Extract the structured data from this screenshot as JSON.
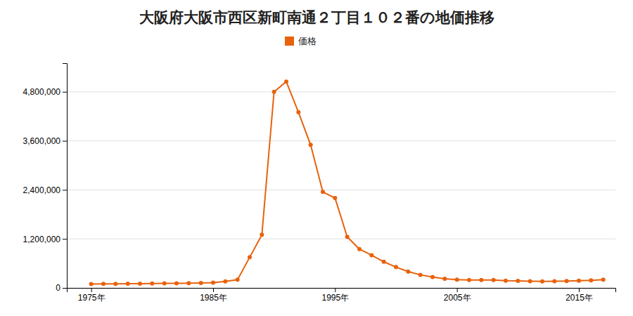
{
  "chart_data": {
    "type": "line",
    "title": "大阪府大阪市西区新町南通２丁目１０２番の地価推移",
    "x": [
      1975,
      1976,
      1977,
      1978,
      1979,
      1980,
      1981,
      1982,
      1983,
      1984,
      1985,
      1986,
      1987,
      1988,
      1989,
      1990,
      1991,
      1992,
      1993,
      1994,
      1995,
      1996,
      1997,
      1998,
      1999,
      2000,
      2001,
      2002,
      2003,
      2004,
      2005,
      2006,
      2007,
      2008,
      2009,
      2010,
      2011,
      2012,
      2013,
      2014,
      2015,
      2016,
      2017
    ],
    "series": [
      {
        "name": "価格",
        "color": "#e8620c",
        "marker": "circle",
        "values": [
          95000,
          98000,
          100000,
          103000,
          105000,
          108000,
          110000,
          112000,
          115000,
          120000,
          130000,
          160000,
          200000,
          750000,
          1300000,
          4800000,
          5050000,
          4300000,
          3500000,
          2350000,
          2200000,
          1250000,
          950000,
          800000,
          640000,
          510000,
          400000,
          320000,
          265000,
          225000,
          200000,
          195000,
          195000,
          195000,
          175000,
          170000,
          165000,
          160000,
          163000,
          168000,
          175000,
          185000,
          200000
        ]
      }
    ],
    "xlim": [
      1973,
      2018
    ],
    "xticks": [
      {
        "value": 1975,
        "label": "1975年"
      },
      {
        "value": 1985,
        "label": "1985年"
      },
      {
        "value": 1995,
        "label": "1995年"
      },
      {
        "value": 2005,
        "label": "2005年"
      },
      {
        "value": 2015,
        "label": "2015年"
      }
    ],
    "ylim": [
      0,
      5500000
    ],
    "yticks": [
      0,
      {
        "value": 1200000,
        "label": "1,200,000"
      },
      {
        "value": 2400000,
        "label": "2,400,000"
      },
      {
        "value": 3600000,
        "label": "3,600,000"
      },
      {
        "value": 4800000,
        "label": "4,800,000"
      }
    ],
    "grid": true,
    "legend": "top"
  }
}
